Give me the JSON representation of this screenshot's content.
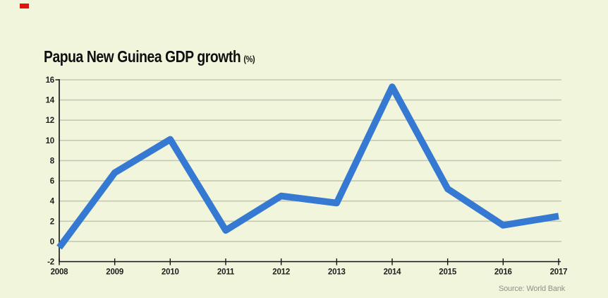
{
  "chart_data": {
    "type": "line",
    "title": "Papua New Guinea GDP growth",
    "unit": "(%)",
    "source": "Source: World Bank",
    "x": [
      2008,
      2009,
      2010,
      2011,
      2012,
      2013,
      2014,
      2015,
      2016,
      2017
    ],
    "values": [
      -0.6,
      6.8,
      10.1,
      1.1,
      4.5,
      3.8,
      15.3,
      5.2,
      1.6,
      2.5
    ],
    "yticks": [
      16,
      14,
      12,
      10,
      8,
      6,
      4,
      2,
      0,
      -2
    ],
    "ylim": [
      -2,
      16
    ],
    "ytick_step": 2,
    "xlabel": "",
    "ylabel": "",
    "grid": true,
    "legend": "none",
    "colors": {
      "line": "#3679d2",
      "background": "#f0f5dc",
      "grid": "#c6c9b2",
      "axis": "#141414",
      "tick_text": "#1e1e1e",
      "source_text": "#8e9387",
      "accent_red": "#e3120b"
    }
  }
}
